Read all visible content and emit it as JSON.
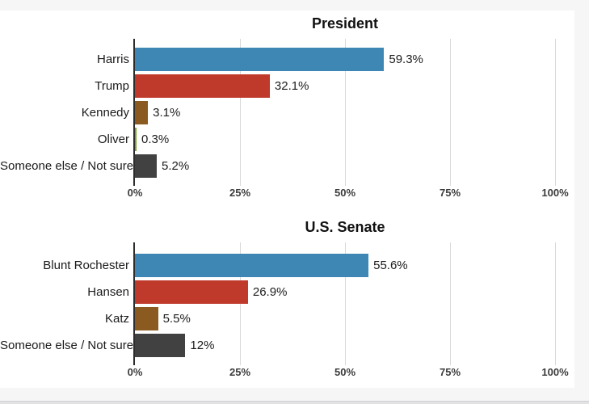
{
  "chart_data": [
    {
      "type": "bar",
      "orientation": "horizontal",
      "title": "President",
      "categories": [
        "Harris",
        "Trump",
        "Kennedy",
        "Oliver",
        "Someone else / Not sure"
      ],
      "values": [
        59.3,
        32.1,
        3.1,
        0.3,
        5.2
      ],
      "value_labels": [
        "59.3%",
        "32.1%",
        "3.1%",
        "0.3%",
        "5.2%"
      ],
      "bar_colors": [
        "#3e87b5",
        "#c03a2c",
        "#8a5a21",
        "#79a22d",
        "#414141"
      ],
      "x_ticks": [
        "0%",
        "25%",
        "50%",
        "75%",
        "100%"
      ],
      "xlim": [
        0,
        100
      ],
      "grid": "vertical-lines"
    },
    {
      "type": "bar",
      "orientation": "horizontal",
      "title": "U.S. Senate",
      "categories": [
        "Blunt Rochester",
        "Hansen",
        "Katz",
        "Someone else / Not sure"
      ],
      "values": [
        55.6,
        26.9,
        5.5,
        12
      ],
      "value_labels": [
        "55.6%",
        "26.9%",
        "5.5%",
        "12%"
      ],
      "bar_colors": [
        "#3e87b5",
        "#c03a2c",
        "#8a5a21",
        "#414141"
      ],
      "x_ticks": [
        "0%",
        "25%",
        "50%",
        "75%",
        "100%"
      ],
      "xlim": [
        0,
        100
      ],
      "grid": "vertical-lines"
    }
  ],
  "colors": {
    "page_background": "#f6f6f7",
    "card_background": "#ffffff",
    "axis_line": "#2d2d2d",
    "gridline": "#d9d9da",
    "blue": "#3e87b5",
    "red": "#c03a2c",
    "brown": "#8a5a21",
    "green": "#79a22d",
    "dark_gray": "#414141"
  }
}
